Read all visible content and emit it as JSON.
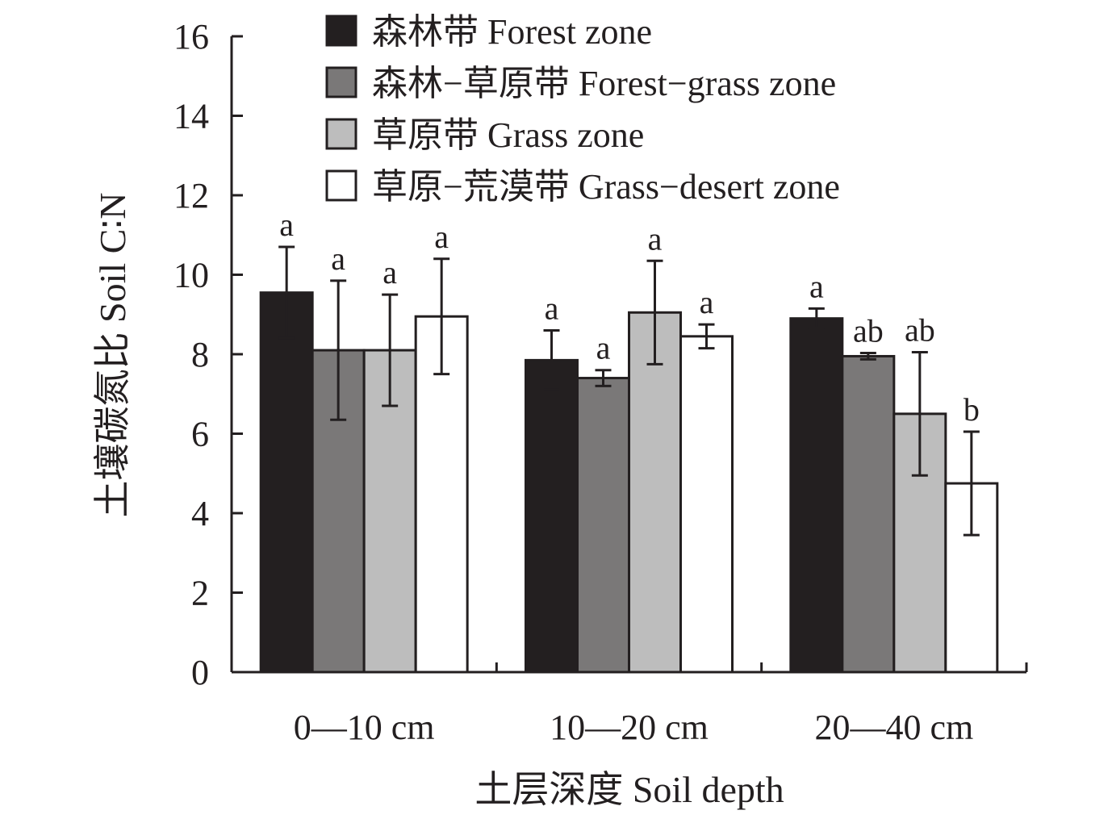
{
  "chart_data": {
    "type": "bar",
    "xlabel": "土层深度 Soil depth",
    "ylabel": "土壤碳氮比 Soil C∶N",
    "ylim": [
      0,
      16
    ],
    "yticks": [
      "0",
      "2",
      "4",
      "6",
      "8",
      "10",
      "12",
      "14",
      "16"
    ],
    "categories": [
      "0—10 cm",
      "10—20 cm",
      "20—40 cm"
    ],
    "legend_position": "top",
    "grid": false,
    "series": [
      {
        "name": "森林带 Forest zone",
        "color": "#231f20",
        "values": [
          9.55,
          7.85,
          8.9
        ],
        "errors": [
          1.15,
          0.75,
          0.25
        ],
        "labels": [
          "a",
          "a",
          "a"
        ]
      },
      {
        "name": "森林−草原带 Forest−grass zone",
        "color": "#7a7878",
        "values": [
          8.1,
          7.4,
          7.95
        ],
        "errors": [
          1.75,
          0.2,
          0.08
        ],
        "labels": [
          "a",
          "a",
          "ab"
        ]
      },
      {
        "name": "草原带 Grass zone",
        "color": "#bdbdbd",
        "values": [
          8.1,
          9.05,
          6.5
        ],
        "errors": [
          1.4,
          1.3,
          1.55
        ],
        "labels": [
          "a",
          "a",
          "ab"
        ]
      },
      {
        "name": "草原−荒漠带 Grass−desert zone",
        "color": "#ffffff",
        "values": [
          8.95,
          8.45,
          4.75
        ],
        "errors": [
          1.45,
          0.3,
          1.3
        ],
        "labels": [
          "a",
          "a",
          "b"
        ]
      }
    ]
  }
}
